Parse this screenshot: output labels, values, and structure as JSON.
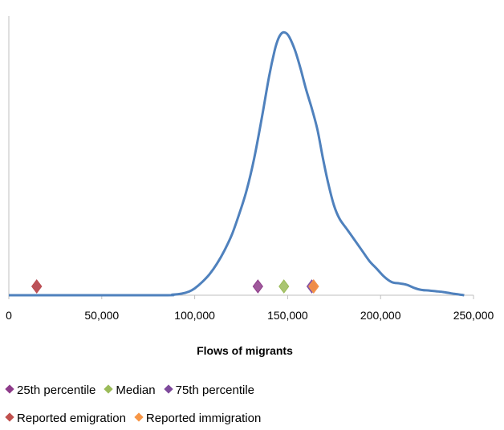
{
  "chart_data": {
    "type": "line",
    "title": "",
    "xlabel": "Flows of migrants",
    "ylabel": "",
    "xlim": [
      0,
      250000
    ],
    "ylim": [
      0,
      1
    ],
    "x_ticks": [
      {
        "value": 0,
        "label": "0"
      },
      {
        "value": 50000,
        "label": "50,000"
      },
      {
        "value": 100000,
        "label": "100,000"
      },
      {
        "value": 150000,
        "label": "150,000"
      },
      {
        "value": 200000,
        "label": "200,000"
      },
      {
        "value": 250000,
        "label": "250,000"
      }
    ],
    "grid": false,
    "legend_position": "bottom",
    "density": {
      "color": "#4f81bd",
      "x": [
        0,
        80000,
        88000,
        93000,
        97000,
        100000,
        104000,
        108000,
        112000,
        116000,
        120000,
        124000,
        128000,
        132000,
        136000,
        140000,
        143000,
        145000,
        147000,
        149000,
        151000,
        154000,
        157000,
        160000,
        163000,
        166000,
        169000,
        172000,
        175000,
        178000,
        182000,
        186000,
        190000,
        194000,
        198000,
        202000,
        206000,
        210000,
        214000,
        218000,
        222000,
        226000,
        230000,
        234000,
        238000,
        242000,
        245000
      ],
      "y": [
        0,
        0,
        0.002,
        0.006,
        0.014,
        0.026,
        0.05,
        0.08,
        0.12,
        0.17,
        0.23,
        0.31,
        0.4,
        0.52,
        0.67,
        0.83,
        0.93,
        0.975,
        0.997,
        0.997,
        0.98,
        0.93,
        0.86,
        0.78,
        0.71,
        0.63,
        0.52,
        0.42,
        0.34,
        0.29,
        0.25,
        0.21,
        0.17,
        0.13,
        0.1,
        0.07,
        0.05,
        0.045,
        0.04,
        0.028,
        0.02,
        0.018,
        0.015,
        0.012,
        0.007,
        0.003,
        0
      ]
    },
    "series": [
      {
        "name": "25th percentile",
        "color": "#8e3c8a",
        "points": [
          15000,
          134000
        ]
      },
      {
        "name": "Median",
        "color": "#9bbb59",
        "points": [
          148000
        ]
      },
      {
        "name": "75th percentile",
        "color": "#7e4a9c",
        "points": [
          163000
        ]
      },
      {
        "name": "Reported emigration",
        "color": "#c0504d",
        "points": [
          15000,
          164000
        ]
      },
      {
        "name": "Reported immigration",
        "color": "#f79646",
        "points": [
          164000
        ]
      }
    ]
  }
}
